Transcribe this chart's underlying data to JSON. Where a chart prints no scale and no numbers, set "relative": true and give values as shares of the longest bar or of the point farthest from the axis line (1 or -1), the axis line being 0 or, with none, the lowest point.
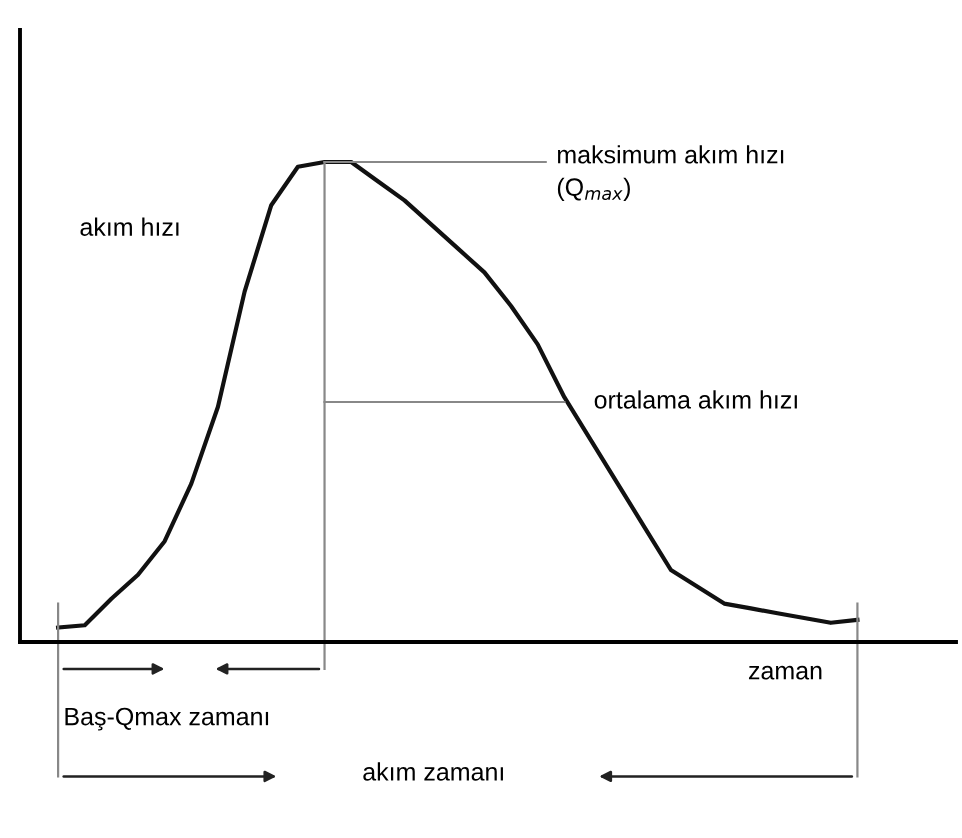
{
  "chart_data": {
    "type": "line",
    "relative": true,
    "grid": false,
    "legend": false,
    "marker": "none",
    "line_style": "solid",
    "xlabel": "zaman",
    "ylabel": "akım hızı",
    "categories": [
      null,
      null,
      null,
      null,
      null,
      null,
      null,
      null,
      null,
      null,
      null,
      null,
      null,
      null,
      null,
      null,
      null,
      null,
      null,
      null,
      null,
      null,
      null,
      null,
      null,
      null,
      null,
      null,
      null,
      null,
      null
    ],
    "series": [
      {
        "color": "#111111",
        "values": [
          0.03,
          0.035,
          0.09,
          0.14,
          0.21,
          0.33,
          0.49,
          0.73,
          0.91,
          0.99,
          1.0,
          1.0,
          0.96,
          0.92,
          0.87,
          0.82,
          0.77,
          0.7,
          0.62,
          0.51,
          0.42,
          0.33,
          0.24,
          0.15,
          0.115,
          0.08,
          0.07,
          0.06,
          0.05,
          0.04,
          0.046
        ]
      }
    ],
    "ref_lines": [
      {
        "axis": "y",
        "value": 1,
        "label": "maksimum akım hızı\n(Q$_{max}$)",
        "color": "#888888"
      },
      {
        "axis": "y",
        "value": 0.5,
        "label": "ortalama akım hızı",
        "color": "#888888"
      }
    ],
    "annotations": [
      "Baş-Qmax zamanı",
      "akım zamanı"
    ]
  }
}
